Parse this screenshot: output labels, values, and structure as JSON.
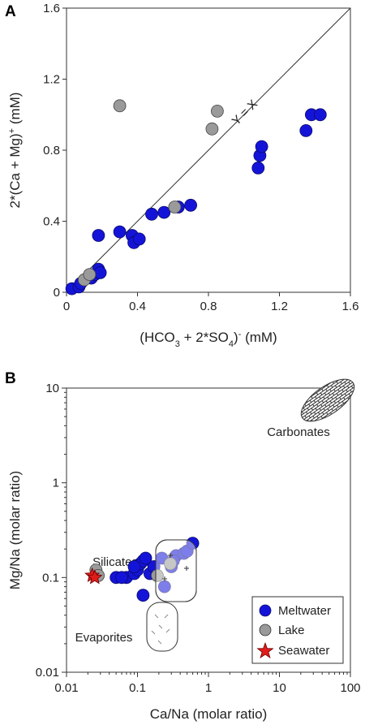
{
  "colors": {
    "meltwater": "#1414d9",
    "lake": "#9a9a9a",
    "seawater": "#e11b1b",
    "axis": "#333333"
  },
  "chart_data": [
    {
      "panel": "A",
      "type": "scatter",
      "xlabel": "(HCO3 + 2*SO4)⁻ (mM)",
      "ylabel": "2*(Ca + Mg)⁺ (mM)",
      "xlim": [
        0,
        1.6
      ],
      "ylim": [
        0,
        1.6
      ],
      "xticks": [
        "0",
        "0.4",
        "0.8",
        "1.2",
        "1.6"
      ],
      "yticks": [
        "0",
        "0.4",
        "0.8",
        "1.2",
        "1.6"
      ],
      "one_to_one_label": "Y = X",
      "series": [
        {
          "color_key": "meltwater",
          "points": [
            [
              0.03,
              0.02
            ],
            [
              0.07,
              0.03
            ],
            [
              0.08,
              0.05
            ],
            [
              0.14,
              0.08
            ],
            [
              0.16,
              0.1
            ],
            [
              0.18,
              0.13
            ],
            [
              0.19,
              0.11
            ],
            [
              0.18,
              0.32
            ],
            [
              0.3,
              0.34
            ],
            [
              0.37,
              0.32
            ],
            [
              0.38,
              0.28
            ],
            [
              0.41,
              0.3
            ],
            [
              0.48,
              0.44
            ],
            [
              0.55,
              0.45
            ],
            [
              0.63,
              0.48
            ],
            [
              0.7,
              0.49
            ],
            [
              1.08,
              0.7
            ],
            [
              1.09,
              0.77
            ],
            [
              1.1,
              0.82
            ],
            [
              1.35,
              0.91
            ],
            [
              1.38,
              1.0
            ],
            [
              1.43,
              1.0
            ]
          ]
        },
        {
          "color_key": "lake",
          "points": [
            [
              0.1,
              0.07
            ],
            [
              0.13,
              0.1
            ],
            [
              0.3,
              1.05
            ],
            [
              0.61,
              0.48
            ],
            [
              0.82,
              0.92
            ],
            [
              0.85,
              1.02
            ]
          ]
        }
      ]
    },
    {
      "panel": "B",
      "type": "scatter",
      "xscale": "log",
      "yscale": "log",
      "xlabel": "Ca/Na (molar ratio)",
      "ylabel": "Mg/Na (molar ratio)",
      "xlim": [
        0.01,
        100
      ],
      "ylim": [
        0.01,
        10
      ],
      "xticks": [
        "0.01",
        "0.1",
        "1",
        "10",
        "100"
      ],
      "yticks": [
        "0.01",
        "0.1",
        "1",
        "10"
      ],
      "regions": [
        "Carbonates",
        "Silicates",
        "Evaporites"
      ],
      "legend": {
        "placement": "bottom-right",
        "entries": [
          "Meltwater",
          "Lake",
          "Seawater"
        ]
      },
      "series": [
        {
          "name": "Meltwater",
          "color_key": "meltwater",
          "points": [
            [
              0.05,
              0.1
            ],
            [
              0.07,
              0.1
            ],
            [
              0.09,
              0.11
            ],
            [
              0.1,
              0.12
            ],
            [
              0.11,
              0.14
            ],
            [
              0.12,
              0.15
            ],
            [
              0.12,
              0.065
            ],
            [
              0.15,
              0.11
            ],
            [
              0.17,
              0.13
            ],
            [
              0.24,
              0.08
            ],
            [
              0.3,
              0.13
            ],
            [
              0.35,
              0.17
            ],
            [
              0.45,
              0.18
            ],
            [
              0.5,
              0.19
            ],
            [
              0.6,
              0.23
            ],
            [
              0.22,
              0.16
            ],
            [
              0.32,
              0.15
            ],
            [
              0.13,
              0.16
            ],
            [
              0.09,
              0.13
            ],
            [
              0.06,
              0.1
            ]
          ]
        },
        {
          "name": "Lake",
          "color_key": "lake",
          "points": [
            [
              0.026,
              0.12
            ],
            [
              0.028,
              0.105
            ],
            [
              0.19,
              0.105
            ],
            [
              0.29,
              0.14
            ]
          ]
        },
        {
          "name": "Seawater",
          "color_key": "seawater",
          "points": [
            [
              0.023,
              0.105
            ],
            [
              0.025,
              0.1
            ]
          ]
        }
      ]
    }
  ]
}
